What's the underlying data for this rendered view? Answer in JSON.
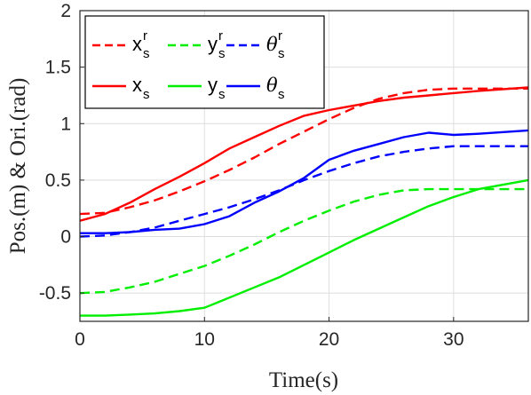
{
  "chart_data": {
    "type": "line",
    "title": "",
    "xlabel": "Time(s)",
    "ylabel": "Pos.(m) & Ori.(rad)",
    "xlim": [
      0,
      36
    ],
    "ylim": [
      -0.75,
      2
    ],
    "x_ticks": [
      0,
      10,
      20,
      30
    ],
    "x_tick_labels": [
      "0",
      "10",
      "20",
      "30"
    ],
    "y_ticks": [
      -0.5,
      0,
      0.5,
      1,
      1.5,
      2
    ],
    "y_tick_labels": [
      "-0.5",
      "0",
      "0.5",
      "1",
      "1.5",
      "2"
    ],
    "grid": true,
    "legend_position": "top-left",
    "x": [
      0,
      2,
      4,
      6,
      8,
      10,
      12,
      14,
      16,
      18,
      20,
      22,
      24,
      26,
      28,
      30,
      32,
      36
    ],
    "series": [
      {
        "name": "x_s^r",
        "legend_base": "x",
        "legend_sub": "s",
        "legend_sup": "r",
        "color": "#ff0000",
        "dash": "dashed",
        "values": [
          0.2,
          0.21,
          0.26,
          0.32,
          0.4,
          0.49,
          0.59,
          0.7,
          0.82,
          0.93,
          1.04,
          1.14,
          1.22,
          1.27,
          1.3,
          1.31,
          1.31,
          1.31
        ]
      },
      {
        "name": "y_s^r",
        "legend_base": "y",
        "legend_sub": "s",
        "legend_sup": "r",
        "color": "#00ee00",
        "dash": "dashed",
        "values": [
          -0.5,
          -0.49,
          -0.45,
          -0.4,
          -0.33,
          -0.26,
          -0.17,
          -0.07,
          0.04,
          0.14,
          0.23,
          0.31,
          0.37,
          0.41,
          0.42,
          0.42,
          0.42,
          0.42
        ]
      },
      {
        "name": "θ_s^r",
        "legend_base": "θ",
        "legend_sub": "s",
        "legend_sup": "r",
        "color": "#0000ff",
        "dash": "dashed",
        "italic": true,
        "values": [
          0.0,
          0.01,
          0.04,
          0.08,
          0.14,
          0.2,
          0.26,
          0.33,
          0.41,
          0.5,
          0.58,
          0.65,
          0.71,
          0.75,
          0.78,
          0.8,
          0.8,
          0.8
        ]
      },
      {
        "name": "x_s",
        "legend_base": "x",
        "legend_sub": "s",
        "color": "#ff0000",
        "dash": "solid",
        "values": [
          0.14,
          0.2,
          0.3,
          0.42,
          0.53,
          0.65,
          0.78,
          0.88,
          0.98,
          1.07,
          1.12,
          1.16,
          1.2,
          1.23,
          1.25,
          1.27,
          1.29,
          1.32
        ]
      },
      {
        "name": "y_s",
        "legend_base": "y",
        "legend_sub": "s",
        "color": "#00ee00",
        "dash": "solid",
        "values": [
          -0.7,
          -0.7,
          -0.69,
          -0.68,
          -0.66,
          -0.63,
          -0.54,
          -0.45,
          -0.36,
          -0.25,
          -0.14,
          -0.03,
          0.07,
          0.17,
          0.27,
          0.35,
          0.42,
          0.5
        ]
      },
      {
        "name": "θ_s",
        "legend_base": "θ",
        "legend_sub": "s",
        "color": "#0000ff",
        "dash": "solid",
        "italic": true,
        "values": [
          0.03,
          0.03,
          0.04,
          0.06,
          0.07,
          0.11,
          0.18,
          0.3,
          0.4,
          0.52,
          0.68,
          0.76,
          0.82,
          0.88,
          0.92,
          0.9,
          0.91,
          0.94
        ]
      }
    ]
  }
}
